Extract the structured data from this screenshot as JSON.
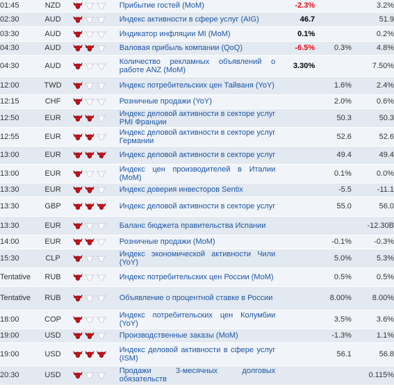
{
  "colors": {
    "event_link": "#1b55a3",
    "negative": "#e30613",
    "bull_active": "#c1121b",
    "bull_inactive": "#c5ccd6"
  },
  "events": [
    {
      "time": "01:45",
      "currency": "NZD",
      "importance": 1,
      "event": "Прибытие гостей (MoM)",
      "actual": "-2.3%",
      "actual_class": "neg",
      "forecast": "",
      "previous": "3.2%",
      "h": 17
    },
    {
      "time": "02:30",
      "currency": "AUD",
      "importance": 1,
      "event": "Индекс активности в сфере услуг (AIG)",
      "actual": "46.7",
      "actual_class": "pos",
      "forecast": "",
      "previous": "51.9",
      "h": 21
    },
    {
      "time": "03:30",
      "currency": "AUD",
      "importance": 1,
      "event": "Индикатор инфляции MI (MoM)",
      "actual": "0.1%",
      "actual_class": "pos",
      "forecast": "",
      "previous": "0.2%",
      "h": 21
    },
    {
      "time": "04:30",
      "currency": "AUD",
      "importance": 2,
      "event": "Валовая прибыль компании (QoQ)",
      "actual": "-6.5%",
      "actual_class": "neg",
      "forecast": "0.3%",
      "previous": "4.8%",
      "h": 20
    },
    {
      "time": "04:30",
      "currency": "AUD",
      "importance": 1,
      "event": "Количество рекламных объявлений о работе ANZ (MoM)",
      "actual": "3.30%",
      "actual_class": "pos",
      "forecast": "",
      "previous": "7.50%",
      "h": 31
    },
    {
      "time": "12:00",
      "currency": "TWD",
      "importance": 1,
      "event": "Индекс потребительских цен Тайваня (YoY)",
      "actual": "",
      "actual_class": "pos",
      "forecast": "1.6%",
      "previous": "2.4%",
      "h": 26
    },
    {
      "time": "12:15",
      "currency": "CHF",
      "importance": 1,
      "event": "Розничные продажи (YoY)",
      "actual": "",
      "actual_class": "pos",
      "forecast": "2.0%",
      "previous": "0.6%",
      "h": 20
    },
    {
      "time": "12:50",
      "currency": "EUR",
      "importance": 2,
      "event": "Индекс деловой активности в секторе услуг PMI Франции",
      "actual": "",
      "actual_class": "pos",
      "forecast": "50.3",
      "previous": "50.3",
      "h": 27
    },
    {
      "time": "12:55",
      "currency": "EUR",
      "importance": 2,
      "event": "Индекс деловой активности в секторе услуг Германии",
      "actual": "",
      "actual_class": "pos",
      "forecast": "52.6",
      "previous": "52.6",
      "h": 27
    },
    {
      "time": "13:00",
      "currency": "EUR",
      "importance": 3,
      "event": "Индекс деловой активности в секторе услуг",
      "actual": "",
      "actual_class": "pos",
      "forecast": "49.4",
      "previous": "49.4",
      "h": 26
    },
    {
      "time": "13:00",
      "currency": "EUR",
      "importance": 1,
      "event": "Индекс цен производителей в Италии (MoM)",
      "actual": "",
      "actual_class": "pos",
      "forecast": "0.1%",
      "previous": "0.0%",
      "h": 27
    },
    {
      "time": "13:30",
      "currency": "EUR",
      "importance": 2,
      "event": "Индекс доверия инвесторов Sentix",
      "actual": "",
      "actual_class": "pos",
      "forecast": "-5.5",
      "previous": "-11.1",
      "h": 20
    },
    {
      "time": "13:30",
      "currency": "GBP",
      "importance": 3,
      "event": "Индекс деловой активности в секторе услуг",
      "actual": "",
      "actual_class": "pos",
      "forecast": "55.0",
      "previous": "56.0",
      "h": 28
    },
    {
      "time": "13:30",
      "currency": "EUR",
      "importance": 1,
      "event": "Баланс бюджета правительства Испании",
      "actual": "",
      "actual_class": "pos",
      "forecast": "",
      "previous": "-12.30B",
      "h": 27
    },
    {
      "time": "14:00",
      "currency": "EUR",
      "importance": 2,
      "event": "Розничные продажи (MoM)",
      "actual": "",
      "actual_class": "pos",
      "forecast": "-0.1%",
      "previous": "-0.3%",
      "h": 20
    },
    {
      "time": "15:30",
      "currency": "CLP",
      "importance": 1,
      "event": "Индекс экономической активности Чили (YoY)",
      "actual": "",
      "actual_class": "pos",
      "forecast": "5.0%",
      "previous": "5.3%",
      "h": 27
    },
    {
      "time": "Tentative",
      "currency": "RUB",
      "importance": 1,
      "event": "Индекс потребительских цен России (MoM)",
      "actual": "",
      "actual_class": "pos",
      "forecast": "0.5%",
      "previous": "0.5%",
      "h": 27
    },
    {
      "time": "Tentative",
      "currency": "RUB",
      "importance": 1,
      "event": "Объявление о процентной ставке в России",
      "actual": "",
      "actual_class": "pos",
      "forecast": "8.00%",
      "previous": "8.00%",
      "h": 34
    },
    {
      "time": "18:00",
      "currency": "COP",
      "importance": 1,
      "event": "Индекс потребительских цен Колумбии (YoY)",
      "actual": "",
      "actual_class": "pos",
      "forecast": "3.5%",
      "previous": "3.6%",
      "h": 27
    },
    {
      "time": "19:00",
      "currency": "USD",
      "importance": 2,
      "event": "Производственные заказы (MoM)",
      "actual": "",
      "actual_class": "pos",
      "forecast": "-1.3%",
      "previous": "1.1%",
      "h": 20
    },
    {
      "time": "19:00",
      "currency": "USD",
      "importance": 3,
      "event": "Индекс деловой активности в сфере услуг (ISM)",
      "actual": "",
      "actual_class": "pos",
      "forecast": "56.1",
      "previous": "56.8",
      "h": 33
    },
    {
      "time": "20:30",
      "currency": "USD",
      "importance": 1,
      "event": "Продажи 3-месячных долговых обязательств",
      "actual": "",
      "actual_class": "pos",
      "forecast": "",
      "previous": "0.115%",
      "h": 28
    }
  ]
}
